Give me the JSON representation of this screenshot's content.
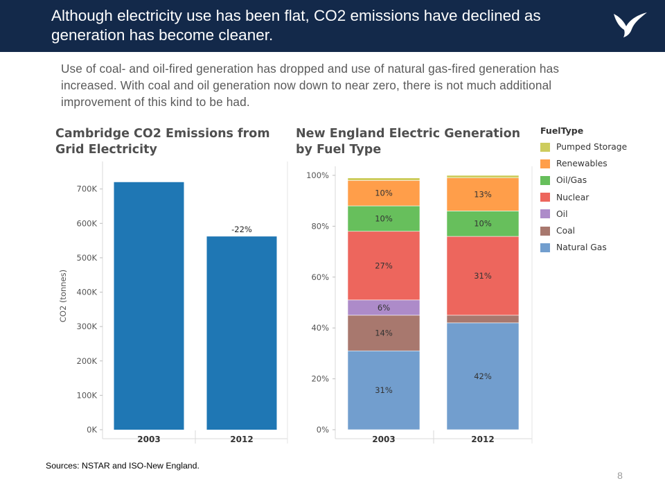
{
  "header": {
    "title": "Although electricity use has been flat, CO2 emissions have declined as generation has become cleaner.",
    "logo_icon": "bird-logo-icon"
  },
  "subtitle": "Use of coal- and oil-fired generation has dropped and use of natural gas-fired generation has increased.  With coal and oil generation now down to near zero, there is not much additional improvement of this kind to be had.",
  "sources": "Sources:  NSTAR and ISO-New England.",
  "page_number": "8",
  "chart_data": [
    {
      "type": "bar",
      "title": "Cambridge CO2 Emissions from Grid Electricity",
      "xlabel": "",
      "ylabel": "CO2 (tonnes)",
      "categories": [
        "2003",
        "2012"
      ],
      "values": [
        720000,
        562000
      ],
      "ylim": [
        0,
        780000
      ],
      "yticks": [
        0,
        100000,
        200000,
        300000,
        400000,
        500000,
        600000,
        700000
      ],
      "ytick_labels": [
        "0K",
        "100K",
        "200K",
        "300K",
        "400K",
        "500K",
        "600K",
        "700K"
      ],
      "annotations": [
        {
          "category": "2012",
          "text": "-22%"
        }
      ],
      "color": "#1f77b4",
      "grid": false
    },
    {
      "type": "bar",
      "stacked": true,
      "title": "New England Electric Generation by Fuel Type",
      "xlabel": "",
      "ylabel": "",
      "categories": [
        "2003",
        "2012"
      ],
      "ylim": [
        0,
        100
      ],
      "yticks": [
        0,
        20,
        40,
        60,
        80,
        100
      ],
      "ytick_labels": [
        "0%",
        "20%",
        "40%",
        "60%",
        "80%",
        "100%"
      ],
      "legend_title": "FuelType",
      "legend_position": "right",
      "grid": false,
      "series": [
        {
          "name": "Natural Gas",
          "color": "#729ece",
          "values": [
            31,
            42
          ],
          "labels": [
            "31%",
            "42%"
          ]
        },
        {
          "name": "Coal",
          "color": "#a8786e",
          "values": [
            14,
            3
          ],
          "labels": [
            "14%",
            ""
          ]
        },
        {
          "name": "Oil",
          "color": "#ad8bc9",
          "values": [
            6,
            0
          ],
          "labels": [
            "6%",
            ""
          ]
        },
        {
          "name": "Nuclear",
          "color": "#ed665d",
          "values": [
            27,
            31
          ],
          "labels": [
            "27%",
            "31%"
          ]
        },
        {
          "name": "Oil/Gas",
          "color": "#67bf5c",
          "values": [
            10,
            10
          ],
          "labels": [
            "10%",
            "10%"
          ]
        },
        {
          "name": "Renewables",
          "color": "#ff9e4a",
          "values": [
            10,
            13
          ],
          "labels": [
            "10%",
            "13%"
          ]
        },
        {
          "name": "Pumped Storage",
          "color": "#cdcc5d",
          "values": [
            1,
            1
          ],
          "labels": [
            "",
            ""
          ]
        }
      ],
      "legend_order": [
        "Pumped Storage",
        "Renewables",
        "Oil/Gas",
        "Nuclear",
        "Oil",
        "Coal",
        "Natural Gas"
      ]
    }
  ]
}
